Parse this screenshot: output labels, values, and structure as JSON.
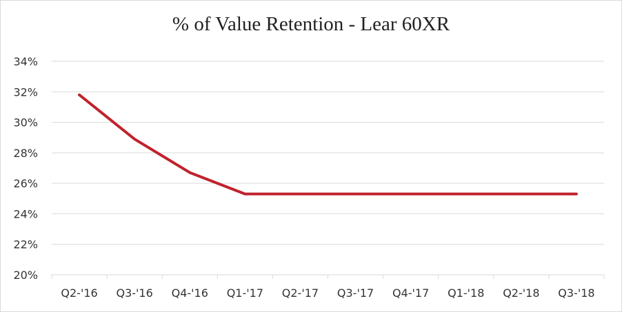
{
  "chart_data": {
    "type": "line",
    "title": "% of Value Retention - Lear 60XR",
    "categories": [
      "Q2-'16",
      "Q3-'16",
      "Q4-'16",
      "Q1-'17",
      "Q2-'17",
      "Q3-'17",
      "Q4-'17",
      "Q1-'18",
      "Q2-'18",
      "Q3-'18"
    ],
    "series": [
      {
        "values": [
          31.8,
          28.9,
          26.7,
          25.3,
          25.3,
          25.3,
          25.3,
          25.3,
          25.3,
          25.3
        ]
      }
    ],
    "ylim": [
      20,
      34
    ],
    "yticks": [
      "20%",
      "22%",
      "24%",
      "26%",
      "28%",
      "30%",
      "32%",
      "34%"
    ],
    "grid": true,
    "legend": "none",
    "line_color": "#c0222d"
  }
}
